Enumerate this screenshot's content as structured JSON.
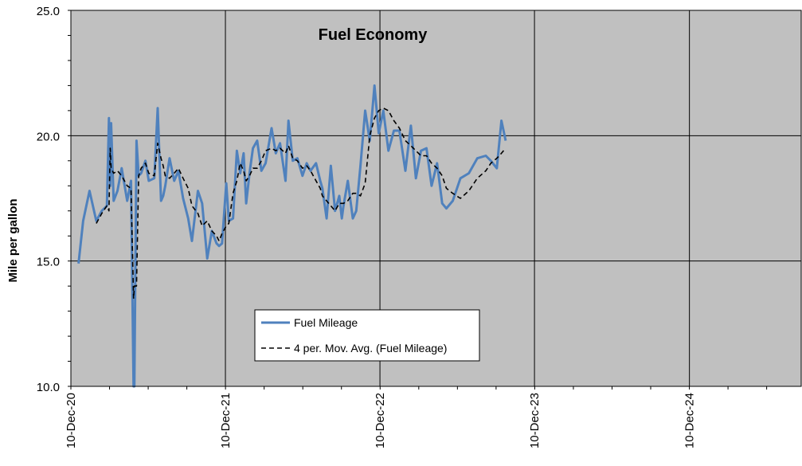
{
  "chart_data": {
    "type": "line",
    "title": "Fuel Economy",
    "ylabel": "Mile per gallon",
    "xlabel": "",
    "ylim": [
      10,
      25
    ],
    "yticks": [
      "10.0",
      "15.0",
      "20.0",
      "25.0"
    ],
    "ytick_values": [
      10,
      15,
      20,
      25
    ],
    "xlim_days": [
      0,
      1725
    ],
    "xtick_days": [
      0,
      365,
      730,
      1095,
      1461
    ],
    "xticks": [
      "10-Dec-20",
      "10-Dec-21",
      "10-Dec-22",
      "10-Dec-23",
      "10-Dec-24"
    ],
    "grid": "major",
    "legend_position": "lower-center",
    "colors": {
      "plot_bg": "#c0c0c0",
      "series1": "#4f81bd",
      "series2": "#000000",
      "grid": "#000000"
    },
    "series": [
      {
        "name": "Fuel Mileage",
        "style": "solid",
        "x": [
          18,
          29,
          44,
          60,
          73,
          85,
          90,
          93,
          95,
          101,
          110,
          120,
          133,
          142,
          148,
          150,
          155,
          160,
          166,
          176,
          184,
          197,
          205,
          213,
          218,
          223,
          233,
          244,
          254,
          265,
          277,
          286,
          300,
          310,
          322,
          333,
          344,
          350,
          357,
          367,
          373,
          383,
          392,
          400,
          408,
          414,
          422,
          430,
          440,
          450,
          460,
          474,
          484,
          494,
          507,
          514,
          524,
          535,
          547,
          557,
          566,
          579,
          589,
          594,
          604,
          614,
          624,
          634,
          640,
          644,
          654,
          666,
          674,
          684,
          695,
          706,
          717,
          727,
          738,
          750,
          763,
          776,
          790,
          803,
          815,
          827,
          840,
          852,
          865,
          877,
          887,
          902,
          920,
          940,
          960,
          980,
          992,
          1006,
          1017,
          1027
        ],
        "values": [
          14.9,
          16.6,
          17.8,
          16.6,
          17.0,
          17.2,
          20.7,
          18.0,
          20.5,
          17.4,
          17.8,
          18.7,
          17.4,
          18.2,
          10.0,
          10.0,
          19.8,
          18.4,
          18.5,
          19.0,
          18.2,
          18.3,
          21.1,
          17.4,
          17.6,
          18.0,
          19.1,
          18.2,
          18.6,
          17.5,
          16.7,
          15.8,
          17.8,
          17.3,
          15.1,
          16.2,
          15.7,
          15.6,
          15.7,
          18.1,
          16.6,
          16.7,
          19.4,
          18.5,
          19.3,
          17.3,
          18.5,
          19.5,
          19.8,
          18.6,
          18.9,
          20.3,
          19.3,
          19.7,
          18.2,
          20.6,
          19.0,
          19.1,
          18.4,
          18.9,
          18.6,
          18.9,
          18.2,
          17.9,
          16.7,
          18.8,
          17.0,
          17.6,
          16.7,
          17.2,
          18.2,
          16.7,
          17.0,
          18.8,
          21.0,
          19.8,
          22.0,
          20.1,
          21.0,
          19.4,
          20.2,
          20.2,
          18.6,
          20.4,
          18.3,
          19.4,
          19.5,
          18.0,
          18.9,
          17.3,
          17.1,
          17.4,
          18.3,
          18.5,
          19.1,
          19.2,
          19.0,
          18.7,
          20.6,
          19.8
        ]
      },
      {
        "name": "4 per. Mov. Avg. (Fuel Mileage)",
        "style": "dashed",
        "x": [
          60,
          73,
          85,
          90,
          93,
          95,
          101,
          110,
          120,
          133,
          142,
          148,
          150,
          155,
          160,
          166,
          176,
          184,
          197,
          205,
          213,
          218,
          223,
          233,
          244,
          254,
          265,
          277,
          286,
          300,
          310,
          322,
          333,
          344,
          350,
          357,
          367,
          373,
          383,
          392,
          400,
          408,
          414,
          422,
          430,
          440,
          450,
          460,
          474,
          484,
          494,
          507,
          514,
          524,
          535,
          547,
          557,
          566,
          579,
          589,
          594,
          604,
          614,
          624,
          634,
          640,
          644,
          654,
          666,
          674,
          684,
          695,
          706,
          717,
          727,
          738,
          750,
          763,
          776,
          790,
          803,
          815,
          827,
          840,
          852,
          865,
          877,
          887,
          902,
          920,
          940,
          960,
          980,
          992,
          1006,
          1017,
          1027
        ],
        "values": [
          16.5,
          16.9,
          17.2,
          17.0,
          19.5,
          18.7,
          18.5,
          18.6,
          18.4,
          18.0,
          17.9,
          13.5,
          14.0,
          14.0,
          18.4,
          18.7,
          18.9,
          18.5,
          18.4,
          19.7,
          19.1,
          18.8,
          18.4,
          18.3,
          18.5,
          18.7,
          18.3,
          17.9,
          17.2,
          16.9,
          16.4,
          16.6,
          16.2,
          16.0,
          15.8,
          16.1,
          16.4,
          16.5,
          17.7,
          18.2,
          18.9,
          18.6,
          18.2,
          18.4,
          18.7,
          18.7,
          19.0,
          19.4,
          19.5,
          19.4,
          19.5,
          19.3,
          19.6,
          19.1,
          19.0,
          18.7,
          18.8,
          18.6,
          18.2,
          17.9,
          17.6,
          17.4,
          17.2,
          17.0,
          17.3,
          17.3,
          17.3,
          17.4,
          17.7,
          17.7,
          17.6,
          18.1,
          20.0,
          20.7,
          21.0,
          21.1,
          21.0,
          20.6,
          20.3,
          19.8,
          19.6,
          19.4,
          19.2,
          19.2,
          18.9,
          18.7,
          18.4,
          17.9,
          17.7,
          17.5,
          17.8,
          18.3,
          18.6,
          18.9,
          19.1,
          19.3,
          19.5
        ]
      }
    ]
  },
  "legend": {
    "items": [
      {
        "label": "Fuel Mileage",
        "style": "solid"
      },
      {
        "label": "4 per. Mov. Avg. (Fuel Mileage)",
        "style": "dashed"
      }
    ]
  }
}
